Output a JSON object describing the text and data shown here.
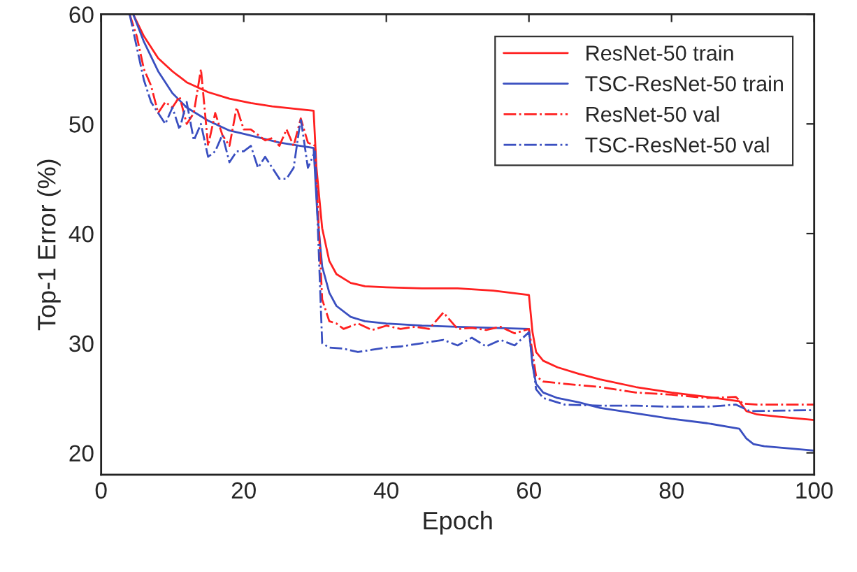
{
  "chart_data": {
    "type": "line",
    "xlabel": "Epoch",
    "ylabel": "Top-1 Error (%)",
    "xlim": [
      0,
      100
    ],
    "ylim": [
      18,
      60
    ],
    "xticks": [
      0,
      20,
      40,
      60,
      80,
      100
    ],
    "yticks": [
      20,
      30,
      40,
      50,
      60
    ],
    "grid": false,
    "legend": "top right",
    "marker": "none",
    "series": [
      {
        "name": "ResNet-50 train",
        "color": "#ff2020",
        "line_style": "solid",
        "x": [
          4.5,
          6,
          8,
          10,
          12,
          15,
          18,
          21,
          24,
          27,
          29.8,
          30.2,
          31,
          32,
          33,
          35,
          37,
          40,
          45,
          50,
          55,
          60,
          60.5,
          61,
          62,
          64,
          67,
          70,
          75,
          80,
          85,
          89.5,
          90.5,
          92,
          95,
          100
        ],
        "values": [
          60,
          58,
          56,
          54.8,
          53.8,
          52.9,
          52.3,
          51.9,
          51.6,
          51.4,
          51.2,
          46,
          40.5,
          37.5,
          36.3,
          35.5,
          35.2,
          35.1,
          35,
          35,
          34.8,
          34.4,
          31,
          29.2,
          28.4,
          27.8,
          27.2,
          26.7,
          26,
          25.5,
          25.1,
          24.7,
          23.8,
          23.5,
          23.3,
          23
        ]
      },
      {
        "name": "TSC-ResNet-50 train",
        "color": "#3a4fc0",
        "line_style": "solid",
        "x": [
          4.5,
          6,
          8,
          10,
          12,
          15,
          18,
          20,
          25,
          29.8,
          30.3,
          31,
          32,
          33,
          35,
          37,
          40,
          45,
          50,
          55,
          60,
          60.5,
          61,
          62,
          64,
          67,
          70,
          75,
          80,
          85,
          89.5,
          90.5,
          91.5,
          93,
          100
        ],
        "values": [
          60,
          57.5,
          54.8,
          52.8,
          51.5,
          50.3,
          49.4,
          49.1,
          48.3,
          47.8,
          42,
          37,
          34.6,
          33.4,
          32.4,
          32,
          31.8,
          31.6,
          31.5,
          31.4,
          31.3,
          28,
          26.3,
          25.5,
          25,
          24.6,
          24.1,
          23.6,
          23.1,
          22.7,
          22.2,
          21.3,
          20.8,
          20.6,
          20.2
        ]
      },
      {
        "name": "ResNet-50 val",
        "color": "#ff2020",
        "line_style": "dashdot",
        "x": [
          4,
          5,
          6,
          7,
          8,
          9,
          10,
          11,
          12,
          13,
          14,
          15,
          16,
          17,
          18,
          19,
          20,
          21,
          22,
          23,
          24,
          25,
          26,
          27,
          28,
          29,
          30,
          31,
          32,
          33,
          34,
          36,
          38,
          40,
          42,
          44,
          46,
          48,
          50,
          52,
          54,
          56,
          58,
          60,
          61,
          62,
          65,
          70,
          75,
          80,
          85,
          89,
          90,
          92,
          100
        ],
        "values": [
          60,
          58,
          55,
          53.5,
          51,
          52,
          51.5,
          52.5,
          50,
          51,
          55,
          48,
          51,
          49,
          48,
          51.5,
          49.5,
          49.5,
          49,
          48.5,
          48.7,
          48,
          49.5,
          48,
          50.5,
          48.3,
          48,
          34,
          32,
          31.8,
          31.3,
          31.8,
          31.2,
          31.6,
          31.3,
          31.5,
          31.3,
          32.8,
          31.3,
          31.4,
          31.2,
          31.5,
          30.9,
          31.3,
          27,
          26.5,
          26.3,
          26,
          25.5,
          25.3,
          25,
          25.1,
          24.5,
          24.4,
          24.4
        ]
      },
      {
        "name": "TSC-ResNet-50 val",
        "color": "#3a4fc0",
        "line_style": "dashdot",
        "x": [
          4,
          5,
          6,
          7,
          8,
          9,
          10,
          11,
          12,
          13,
          14,
          15,
          16,
          17,
          18,
          19,
          20,
          21,
          22,
          23,
          24,
          25,
          26,
          27,
          28,
          29,
          30,
          31,
          32,
          34,
          36,
          38,
          40,
          42,
          45,
          48,
          50,
          52,
          54,
          56,
          58,
          60,
          61,
          62,
          65,
          70,
          75,
          80,
          85,
          89,
          91,
          100
        ],
        "values": [
          60,
          57,
          54,
          52,
          51,
          50,
          51.5,
          49.5,
          52,
          48.5,
          50,
          47,
          47.5,
          49,
          46.5,
          47.5,
          47.5,
          48,
          46,
          47,
          46,
          45,
          45,
          46,
          50.5,
          46,
          47.5,
          30,
          29.6,
          29.5,
          29.2,
          29.4,
          29.6,
          29.7,
          30,
          30.3,
          29.8,
          30.5,
          29.7,
          30.3,
          29.8,
          31,
          25.8,
          25,
          24.4,
          24.3,
          24.3,
          24.2,
          24.2,
          24.4,
          23.8,
          23.9
        ]
      }
    ]
  }
}
